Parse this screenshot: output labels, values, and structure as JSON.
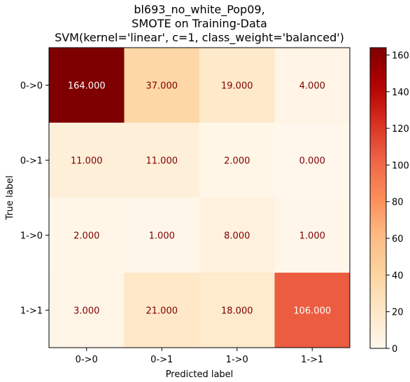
{
  "chart_data": {
    "type": "heatmap",
    "title": [
      "bl693_no_white_Pop09,",
      "SMOTE on Training-Data",
      "SVM(kernel='linear', c=1, class_weight='balanced')"
    ],
    "xlabel": "Predicted label",
    "ylabel": "True label",
    "x_categories": [
      "0->0",
      "0->1",
      "1->0",
      "1->1"
    ],
    "y_categories": [
      "0->0",
      "0->1",
      "1->0",
      "1->1"
    ],
    "values": [
      [
        164,
        37,
        19,
        4
      ],
      [
        11,
        11,
        2,
        0
      ],
      [
        2,
        1,
        8,
        1
      ],
      [
        3,
        21,
        18,
        106
      ]
    ],
    "cell_labels": [
      [
        "164.000",
        "37.000",
        "19.000",
        "4.000"
      ],
      [
        "11.000",
        "11.000",
        "2.000",
        "0.000"
      ],
      [
        "2.000",
        "1.000",
        "8.000",
        "1.000"
      ],
      [
        "3.000",
        "21.000",
        "18.000",
        "106.000"
      ]
    ],
    "colormap": "OrRd",
    "colorbar": {
      "range": [
        0,
        164
      ],
      "ticks": [
        0,
        20,
        40,
        60,
        80,
        100,
        120,
        140,
        160
      ]
    },
    "grid": false
  }
}
